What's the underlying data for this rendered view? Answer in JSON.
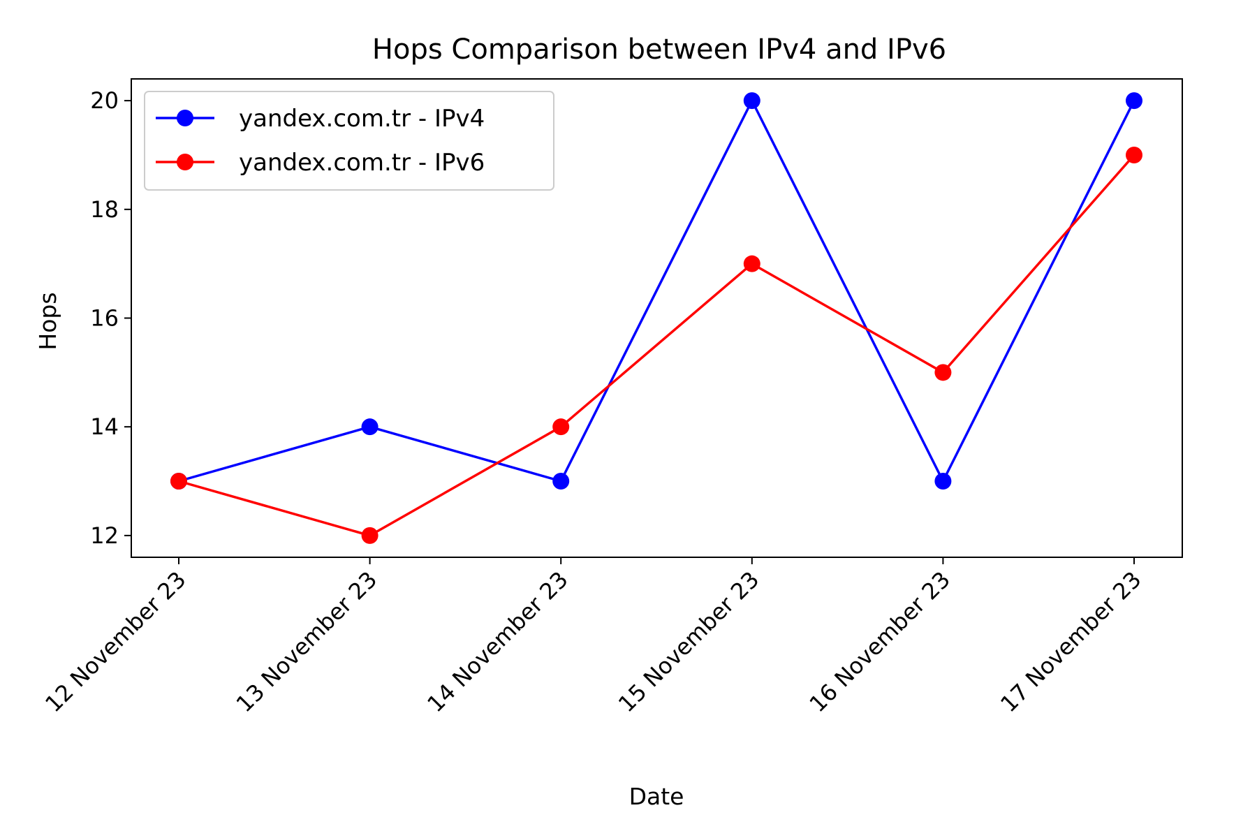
{
  "chart_data": {
    "type": "line",
    "title": "Hops Comparison between IPv4 and IPv6",
    "xlabel": "Date",
    "ylabel": "Hops",
    "categories": [
      "12 November 23",
      "13 November 23",
      "14 November 23",
      "15 November 23",
      "16 November 23",
      "17 November 23"
    ],
    "ylim": [
      11.6,
      20.4
    ],
    "yticks": [
      12,
      14,
      16,
      18,
      20
    ],
    "grid": false,
    "legend_position": "top-left",
    "series": [
      {
        "name": "yandex.com.tr - IPv4",
        "color": "#0000ff",
        "values": [
          13,
          14,
          13,
          20,
          13,
          20
        ]
      },
      {
        "name": "yandex.com.tr - IPv6",
        "color": "#ff0000",
        "values": [
          13,
          12,
          14,
          17,
          15,
          19
        ]
      }
    ]
  }
}
